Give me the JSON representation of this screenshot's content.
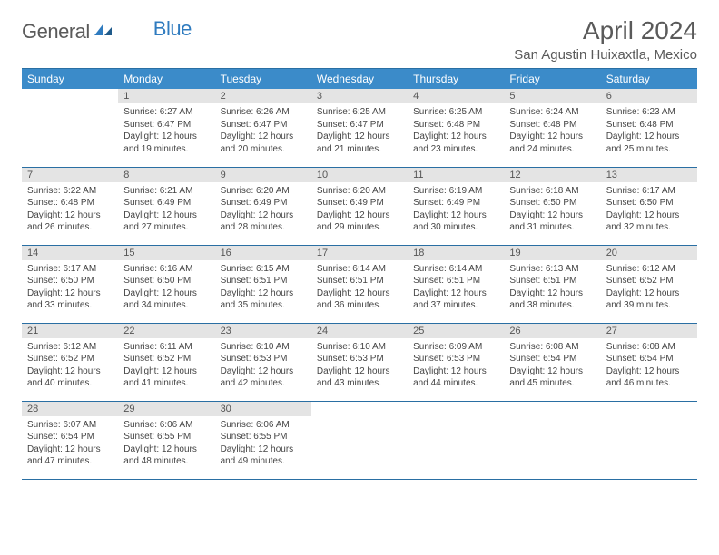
{
  "logo": {
    "general": "General",
    "blue": "Blue"
  },
  "title": "April 2024",
  "location": "San Agustin Huixaxtla, Mexico",
  "header_bg": "#3b8bc9",
  "border_color": "#2a6fa3",
  "daynum_bg": "#e4e4e4",
  "day_names": [
    "Sunday",
    "Monday",
    "Tuesday",
    "Wednesday",
    "Thursday",
    "Friday",
    "Saturday"
  ],
  "weeks": [
    [
      {
        "day": "",
        "sunrise": "",
        "sunset": "",
        "daylight": ""
      },
      {
        "day": "1",
        "sunrise": "Sunrise: 6:27 AM",
        "sunset": "Sunset: 6:47 PM",
        "daylight": "Daylight: 12 hours and 19 minutes."
      },
      {
        "day": "2",
        "sunrise": "Sunrise: 6:26 AM",
        "sunset": "Sunset: 6:47 PM",
        "daylight": "Daylight: 12 hours and 20 minutes."
      },
      {
        "day": "3",
        "sunrise": "Sunrise: 6:25 AM",
        "sunset": "Sunset: 6:47 PM",
        "daylight": "Daylight: 12 hours and 21 minutes."
      },
      {
        "day": "4",
        "sunrise": "Sunrise: 6:25 AM",
        "sunset": "Sunset: 6:48 PM",
        "daylight": "Daylight: 12 hours and 23 minutes."
      },
      {
        "day": "5",
        "sunrise": "Sunrise: 6:24 AM",
        "sunset": "Sunset: 6:48 PM",
        "daylight": "Daylight: 12 hours and 24 minutes."
      },
      {
        "day": "6",
        "sunrise": "Sunrise: 6:23 AM",
        "sunset": "Sunset: 6:48 PM",
        "daylight": "Daylight: 12 hours and 25 minutes."
      }
    ],
    [
      {
        "day": "7",
        "sunrise": "Sunrise: 6:22 AM",
        "sunset": "Sunset: 6:48 PM",
        "daylight": "Daylight: 12 hours and 26 minutes."
      },
      {
        "day": "8",
        "sunrise": "Sunrise: 6:21 AM",
        "sunset": "Sunset: 6:49 PM",
        "daylight": "Daylight: 12 hours and 27 minutes."
      },
      {
        "day": "9",
        "sunrise": "Sunrise: 6:20 AM",
        "sunset": "Sunset: 6:49 PM",
        "daylight": "Daylight: 12 hours and 28 minutes."
      },
      {
        "day": "10",
        "sunrise": "Sunrise: 6:20 AM",
        "sunset": "Sunset: 6:49 PM",
        "daylight": "Daylight: 12 hours and 29 minutes."
      },
      {
        "day": "11",
        "sunrise": "Sunrise: 6:19 AM",
        "sunset": "Sunset: 6:49 PM",
        "daylight": "Daylight: 12 hours and 30 minutes."
      },
      {
        "day": "12",
        "sunrise": "Sunrise: 6:18 AM",
        "sunset": "Sunset: 6:50 PM",
        "daylight": "Daylight: 12 hours and 31 minutes."
      },
      {
        "day": "13",
        "sunrise": "Sunrise: 6:17 AM",
        "sunset": "Sunset: 6:50 PM",
        "daylight": "Daylight: 12 hours and 32 minutes."
      }
    ],
    [
      {
        "day": "14",
        "sunrise": "Sunrise: 6:17 AM",
        "sunset": "Sunset: 6:50 PM",
        "daylight": "Daylight: 12 hours and 33 minutes."
      },
      {
        "day": "15",
        "sunrise": "Sunrise: 6:16 AM",
        "sunset": "Sunset: 6:50 PM",
        "daylight": "Daylight: 12 hours and 34 minutes."
      },
      {
        "day": "16",
        "sunrise": "Sunrise: 6:15 AM",
        "sunset": "Sunset: 6:51 PM",
        "daylight": "Daylight: 12 hours and 35 minutes."
      },
      {
        "day": "17",
        "sunrise": "Sunrise: 6:14 AM",
        "sunset": "Sunset: 6:51 PM",
        "daylight": "Daylight: 12 hours and 36 minutes."
      },
      {
        "day": "18",
        "sunrise": "Sunrise: 6:14 AM",
        "sunset": "Sunset: 6:51 PM",
        "daylight": "Daylight: 12 hours and 37 minutes."
      },
      {
        "day": "19",
        "sunrise": "Sunrise: 6:13 AM",
        "sunset": "Sunset: 6:51 PM",
        "daylight": "Daylight: 12 hours and 38 minutes."
      },
      {
        "day": "20",
        "sunrise": "Sunrise: 6:12 AM",
        "sunset": "Sunset: 6:52 PM",
        "daylight": "Daylight: 12 hours and 39 minutes."
      }
    ],
    [
      {
        "day": "21",
        "sunrise": "Sunrise: 6:12 AM",
        "sunset": "Sunset: 6:52 PM",
        "daylight": "Daylight: 12 hours and 40 minutes."
      },
      {
        "day": "22",
        "sunrise": "Sunrise: 6:11 AM",
        "sunset": "Sunset: 6:52 PM",
        "daylight": "Daylight: 12 hours and 41 minutes."
      },
      {
        "day": "23",
        "sunrise": "Sunrise: 6:10 AM",
        "sunset": "Sunset: 6:53 PM",
        "daylight": "Daylight: 12 hours and 42 minutes."
      },
      {
        "day": "24",
        "sunrise": "Sunrise: 6:10 AM",
        "sunset": "Sunset: 6:53 PM",
        "daylight": "Daylight: 12 hours and 43 minutes."
      },
      {
        "day": "25",
        "sunrise": "Sunrise: 6:09 AM",
        "sunset": "Sunset: 6:53 PM",
        "daylight": "Daylight: 12 hours and 44 minutes."
      },
      {
        "day": "26",
        "sunrise": "Sunrise: 6:08 AM",
        "sunset": "Sunset: 6:54 PM",
        "daylight": "Daylight: 12 hours and 45 minutes."
      },
      {
        "day": "27",
        "sunrise": "Sunrise: 6:08 AM",
        "sunset": "Sunset: 6:54 PM",
        "daylight": "Daylight: 12 hours and 46 minutes."
      }
    ],
    [
      {
        "day": "28",
        "sunrise": "Sunrise: 6:07 AM",
        "sunset": "Sunset: 6:54 PM",
        "daylight": "Daylight: 12 hours and 47 minutes."
      },
      {
        "day": "29",
        "sunrise": "Sunrise: 6:06 AM",
        "sunset": "Sunset: 6:55 PM",
        "daylight": "Daylight: 12 hours and 48 minutes."
      },
      {
        "day": "30",
        "sunrise": "Sunrise: 6:06 AM",
        "sunset": "Sunset: 6:55 PM",
        "daylight": "Daylight: 12 hours and 49 minutes."
      },
      {
        "day": "",
        "sunrise": "",
        "sunset": "",
        "daylight": ""
      },
      {
        "day": "",
        "sunrise": "",
        "sunset": "",
        "daylight": ""
      },
      {
        "day": "",
        "sunrise": "",
        "sunset": "",
        "daylight": ""
      },
      {
        "day": "",
        "sunrise": "",
        "sunset": "",
        "daylight": ""
      }
    ]
  ]
}
